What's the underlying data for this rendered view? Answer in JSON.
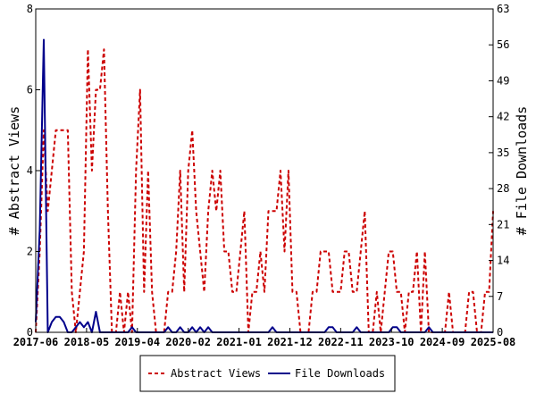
{
  "chart_data": {
    "type": "line",
    "ylabel_left": "# Abstract Views",
    "ylabel_right": "# File Downloads",
    "ylim_left": [
      0,
      8
    ],
    "ylim_right": [
      0,
      63
    ],
    "yticks_left": [
      "0",
      "2",
      "4",
      "6",
      "8"
    ],
    "yticks_right": [
      "0",
      "7",
      "14",
      "21",
      "28",
      "35",
      "42",
      "49",
      "56",
      "63"
    ],
    "x_tick_labels": [
      "2017-06",
      "2018-05",
      "2019-04",
      "2020-02",
      "2021-01",
      "2021-12",
      "2022-11",
      "2023-10",
      "2024-09",
      "2025-08"
    ],
    "grid": false,
    "legend_position": "bottom-center",
    "series": [
      {
        "name": "Abstract Views",
        "axis": "left",
        "color": "#cc0000",
        "style": "dashed",
        "values": [
          0,
          2,
          5,
          3,
          4,
          5,
          5,
          5,
          5,
          1,
          0,
          1,
          2,
          7,
          4,
          6,
          6,
          7,
          3,
          0,
          0,
          1,
          0,
          1,
          0,
          4,
          6,
          1,
          4,
          1,
          0,
          0,
          0,
          1,
          1,
          2,
          4,
          1,
          4,
          5,
          3,
          2,
          1,
          3,
          4,
          3,
          4,
          2,
          2,
          1,
          1,
          2,
          3,
          0,
          1,
          1,
          2,
          1,
          3,
          3,
          3,
          4,
          2,
          4,
          1,
          1,
          0,
          0,
          0,
          1,
          1,
          2,
          2,
          2,
          1,
          1,
          1,
          2,
          2,
          1,
          1,
          2,
          3,
          0,
          0,
          1,
          0,
          1,
          2,
          2,
          1,
          1,
          0,
          1,
          1,
          2,
          0,
          2,
          0,
          0,
          0,
          0,
          0,
          1,
          0,
          0,
          0,
          0,
          1,
          1,
          0,
          0,
          1,
          1,
          3
        ]
      },
      {
        "name": "File Downloads",
        "axis": "right",
        "color": "#00008b",
        "style": "solid",
        "values": [
          2,
          20,
          57,
          0,
          2,
          3,
          3,
          2,
          0,
          0,
          1,
          2,
          1,
          2,
          0,
          4,
          0,
          0,
          0,
          0,
          0,
          0,
          0,
          0,
          1,
          0,
          0,
          0,
          0,
          0,
          0,
          0,
          0,
          1,
          0,
          0,
          1,
          0,
          0,
          1,
          0,
          1,
          0,
          1,
          0,
          0,
          0,
          0,
          0,
          0,
          0,
          0,
          0,
          0,
          0,
          0,
          0,
          0,
          0,
          1,
          0,
          0,
          0,
          0,
          0,
          0,
          0,
          0,
          0,
          0,
          0,
          0,
          0,
          1,
          1,
          0,
          0,
          0,
          0,
          0,
          1,
          0,
          0,
          0,
          0,
          0,
          0,
          0,
          0,
          1,
          1,
          0,
          0,
          0,
          0,
          0,
          0,
          0,
          1,
          0,
          0,
          0,
          0,
          0,
          0,
          0,
          0,
          0,
          0,
          0,
          0,
          0,
          0,
          0,
          0
        ]
      }
    ]
  }
}
